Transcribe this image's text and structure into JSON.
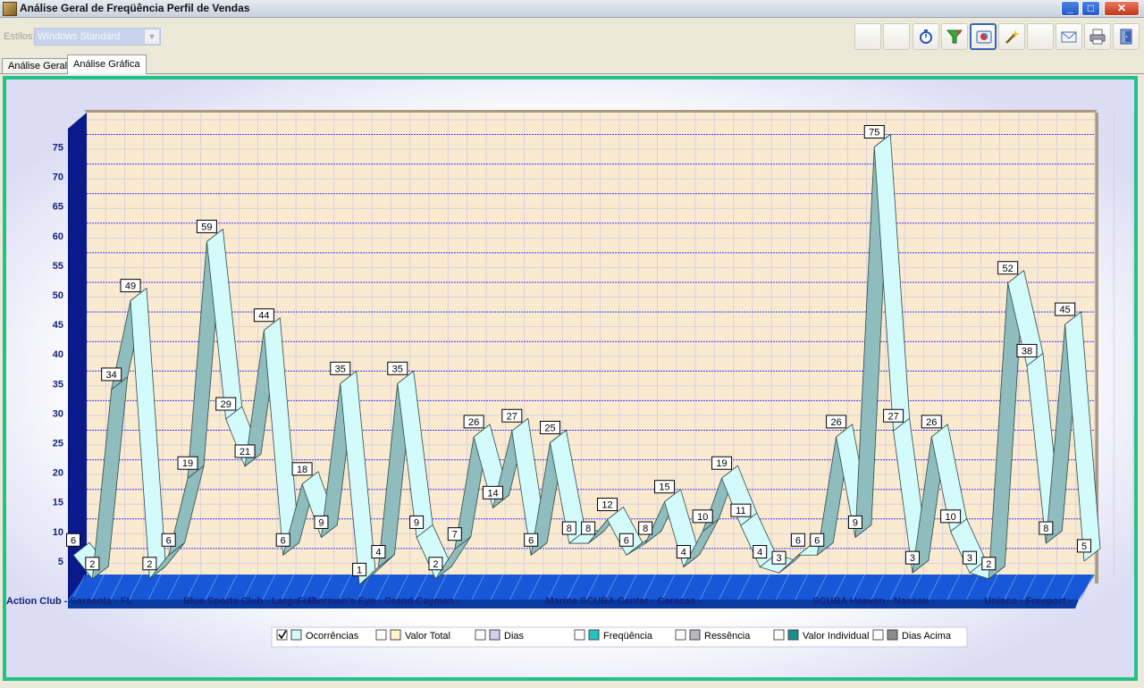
{
  "window": {
    "title": "Análise Geral de Freqüência Perfil de Vendas",
    "min_glyph": "_",
    "max_glyph": "□",
    "close_glyph": "✕"
  },
  "toolbar": {
    "styles_label": "Estilos:",
    "styles_value": "Windows Standard",
    "buttons": [
      {
        "name": "blank-button-1"
      },
      {
        "name": "blank-button-2"
      },
      {
        "name": "timer-icon"
      },
      {
        "name": "filter-icon"
      },
      {
        "name": "chart-icon"
      },
      {
        "name": "wand-icon"
      },
      {
        "name": "blank-button-3"
      },
      {
        "name": "mail-icon"
      },
      {
        "name": "printer-icon"
      },
      {
        "name": "exit-icon"
      }
    ]
  },
  "tabs": [
    {
      "label": "Análise Geral",
      "selected": false
    },
    {
      "label": "Análise Gráfica",
      "selected": true
    }
  ],
  "colors": {
    "accent": "#20c287",
    "plot_bg": "#faebd0",
    "ribbon_light": "#d4fbfb",
    "ribbon_dark": "#8fbcbc",
    "wall": "#0a1a8a",
    "floor": "#1758d8",
    "grid": "#3a3aff",
    "axis_text": "#13237a"
  },
  "chart_data": {
    "type": "line",
    "ylim": [
      0,
      78
    ],
    "yticks": [
      5,
      10,
      15,
      20,
      25,
      30,
      35,
      40,
      45,
      50,
      55,
      60,
      65,
      70,
      75
    ],
    "x_labels": [
      {
        "label": "Action Club - Sarasota - FL",
        "index": 0
      },
      {
        "label": "Blue Sports Club - Largo - FL",
        "index": 6
      },
      {
        "label": "Fisherman's Eye - Grand Cayman -",
        "index": 12
      },
      {
        "label": "Marina SCUBA Center - Caracas -",
        "index": 25
      },
      {
        "label": "SCUBA Heaven - Nassau -",
        "index": 39
      },
      {
        "label": "Unisco - Freeport -",
        "index": 48
      }
    ],
    "series": [
      {
        "name": "Ocorrências",
        "values": [
          6,
          2,
          34,
          49,
          2,
          6,
          19,
          59,
          29,
          21,
          44,
          6,
          18,
          9,
          35,
          1,
          4,
          35,
          9,
          2,
          7,
          26,
          14,
          27,
          6,
          25,
          8,
          8,
          12,
          6,
          8,
          15,
          4,
          10,
          19,
          11,
          4,
          3,
          6,
          6,
          26,
          9,
          75,
          27,
          3,
          26,
          10,
          3,
          2,
          52,
          38,
          8,
          45,
          5
        ]
      }
    ],
    "legend": [
      {
        "label": "Ocorrências",
        "checked": true,
        "color": "#d4fbfb"
      },
      {
        "label": "Valor Total",
        "checked": false,
        "color": "#fff5c8"
      },
      {
        "label": "Dias",
        "checked": false,
        "color": "#d6cdf2"
      },
      {
        "label": "Freqüência",
        "checked": false,
        "color": "#22c4c4"
      },
      {
        "label": "Ressência",
        "checked": false,
        "color": "#b9b9b9"
      },
      {
        "label": "Valor Individual",
        "checked": false,
        "color": "#1a8f8f"
      },
      {
        "label": "Dias Acima",
        "checked": false,
        "color": "#8c8c8c"
      }
    ],
    "legend_position": "bottom"
  }
}
